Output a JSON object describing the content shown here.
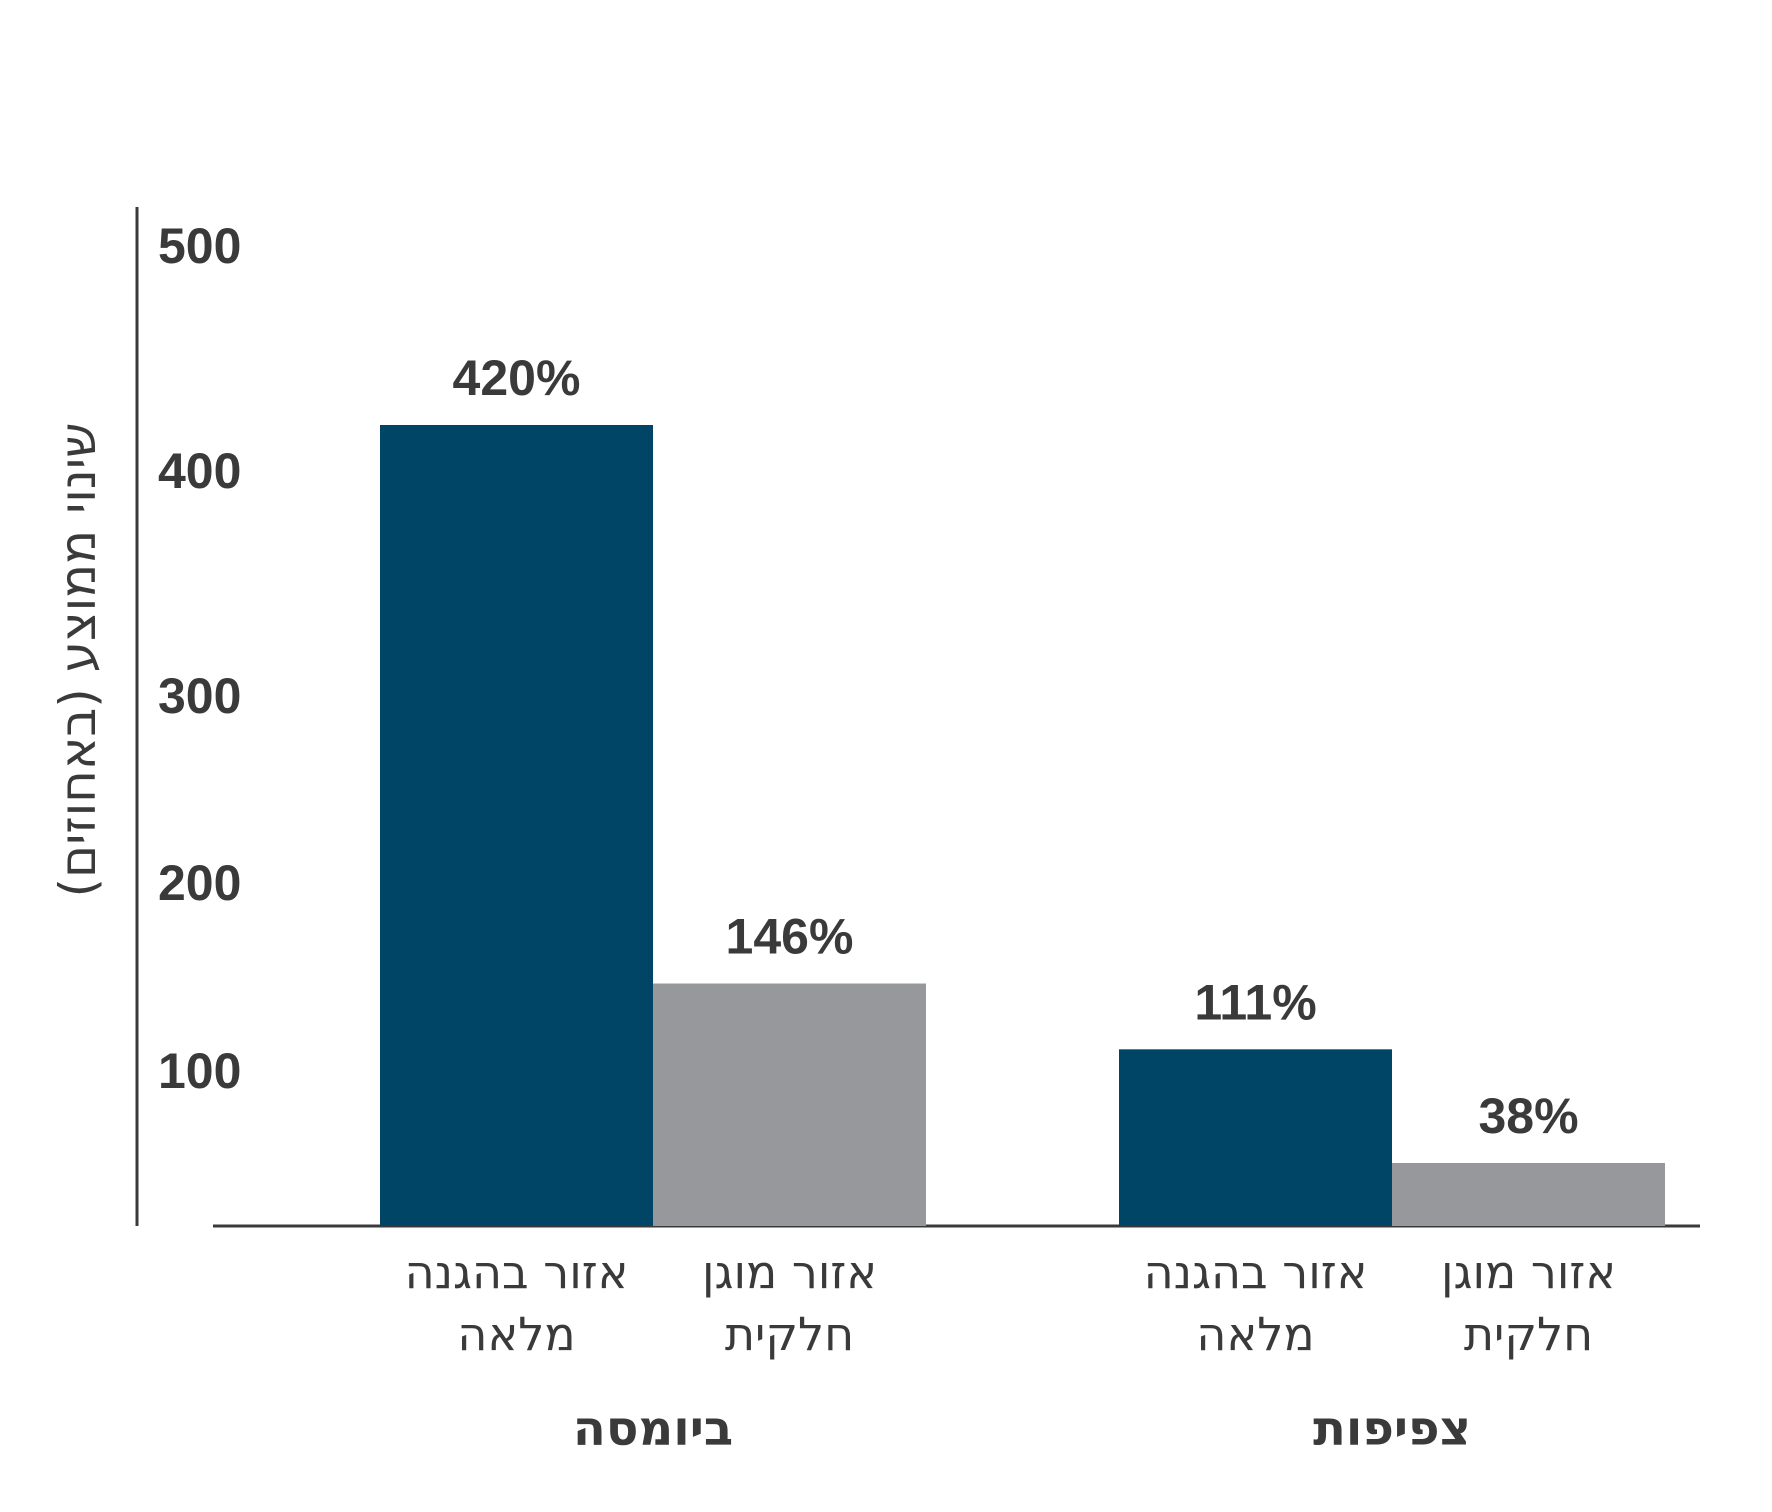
{
  "chart_data": {
    "type": "bar",
    "ylabel": "שינוי ממוצע (באחוזים)",
    "y_ticks": [
      "100",
      "200",
      "300",
      "400",
      "500"
    ],
    "colors": {
      "full": "#004466",
      "partial": "#97989b",
      "axis": "#3a3a3a"
    },
    "groups": [
      {
        "name": "ביומסה",
        "bars": [
          {
            "category_lines": [
              "אזור בהגנה",
              "מלאה"
            ],
            "value": 420,
            "label": "420%",
            "color_key": "full"
          },
          {
            "category_lines": [
              "אזור מוגן",
              "חלקית"
            ],
            "value": 146,
            "label": "146%",
            "color_key": "partial"
          }
        ]
      },
      {
        "name": "צפיפות",
        "bars": [
          {
            "category_lines": [
              "אזור בהגנה",
              "מלאה"
            ],
            "value": 111,
            "label": "111%",
            "color_key": "full"
          },
          {
            "category_lines": [
              "אזור מוגן",
              "חלקית"
            ],
            "value": 38,
            "label": "38%",
            "color_key": "partial"
          }
        ]
      }
    ]
  }
}
